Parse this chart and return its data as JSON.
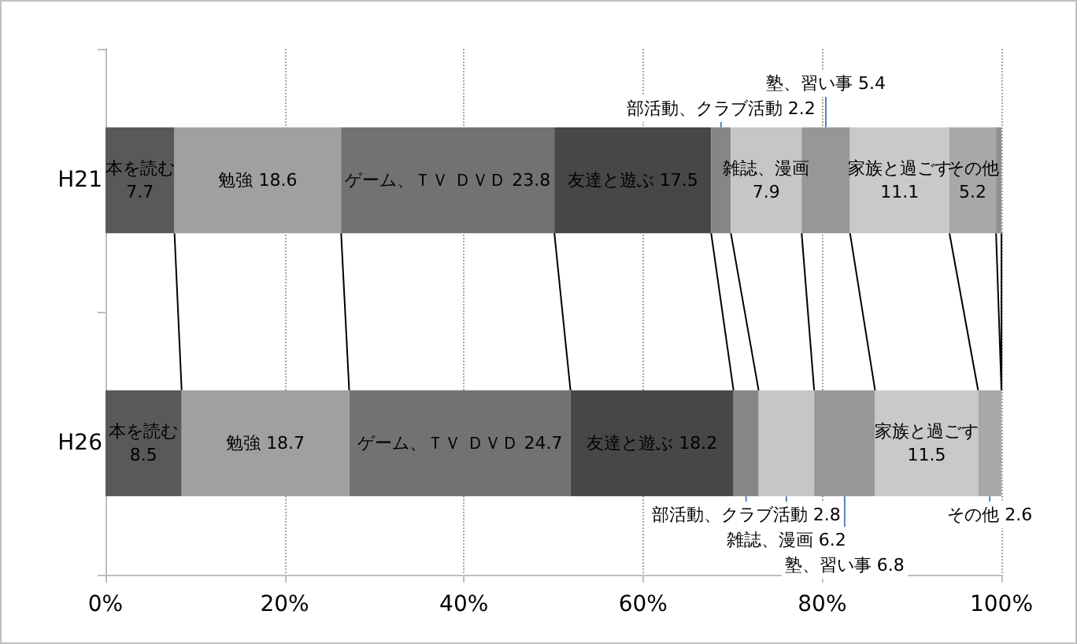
{
  "chart_data": {
    "type": "bar",
    "stacked": true,
    "orientation": "horizontal",
    "categories": [
      "H21",
      "H26"
    ],
    "series": [
      {
        "name": "本を読む",
        "color": "#595959",
        "values": [
          7.7,
          8.5
        ],
        "value_labels": [
          "7.7",
          "8.5"
        ]
      },
      {
        "name": "勉強",
        "color": "#a0a0a0",
        "values": [
          18.6,
          18.7
        ],
        "value_labels": [
          "18.6",
          "18.7"
        ]
      },
      {
        "name": "ゲーム、ＴＶ ＤＶＤ",
        "color": "#727272",
        "values": [
          23.8,
          24.7
        ],
        "value_labels": [
          "23.8",
          "24.7"
        ]
      },
      {
        "name": "友達と遊ぶ",
        "color": "#474747",
        "values": [
          17.5,
          18.2
        ],
        "value_labels": [
          "17.5",
          "18.2"
        ]
      },
      {
        "name": "部活動、クラブ活動",
        "color": "#868686",
        "values": [
          2.2,
          2.8
        ],
        "value_labels": [
          "2.2",
          "2.8"
        ]
      },
      {
        "name": "雑誌、漫画",
        "color": "#c6c6c6",
        "values": [
          7.9,
          6.2
        ],
        "value_labels": [
          "7.9",
          "6.2"
        ]
      },
      {
        "name": "塾、習い事",
        "color": "#979797",
        "values": [
          5.4,
          6.8
        ],
        "value_labels": [
          "5.4",
          "6.8"
        ]
      },
      {
        "name": "家族と過ごす",
        "color": "#c9c9c9",
        "values": [
          11.1,
          11.5
        ],
        "value_labels": [
          "11.1",
          "11.5"
        ]
      },
      {
        "name": "その他",
        "color": "#a8a8a8",
        "values": [
          5.2,
          2.6
        ],
        "value_labels": [
          "5.2",
          "2.6"
        ]
      },
      {
        "color": "#8f8f8f",
        "values": [
          0.6,
          null
        ],
        "value_labels": [
          null,
          null
        ]
      }
    ],
    "xlim": [
      0,
      100
    ],
    "xticks": [
      {
        "value": 0,
        "label": "0%"
      },
      {
        "value": 20,
        "label": "20%"
      },
      {
        "value": 40,
        "label": "40%"
      },
      {
        "value": 60,
        "label": "60%"
      },
      {
        "value": 80,
        "label": "80%"
      },
      {
        "value": 100,
        "label": "100%"
      }
    ],
    "grid": "x",
    "legend": false
  }
}
